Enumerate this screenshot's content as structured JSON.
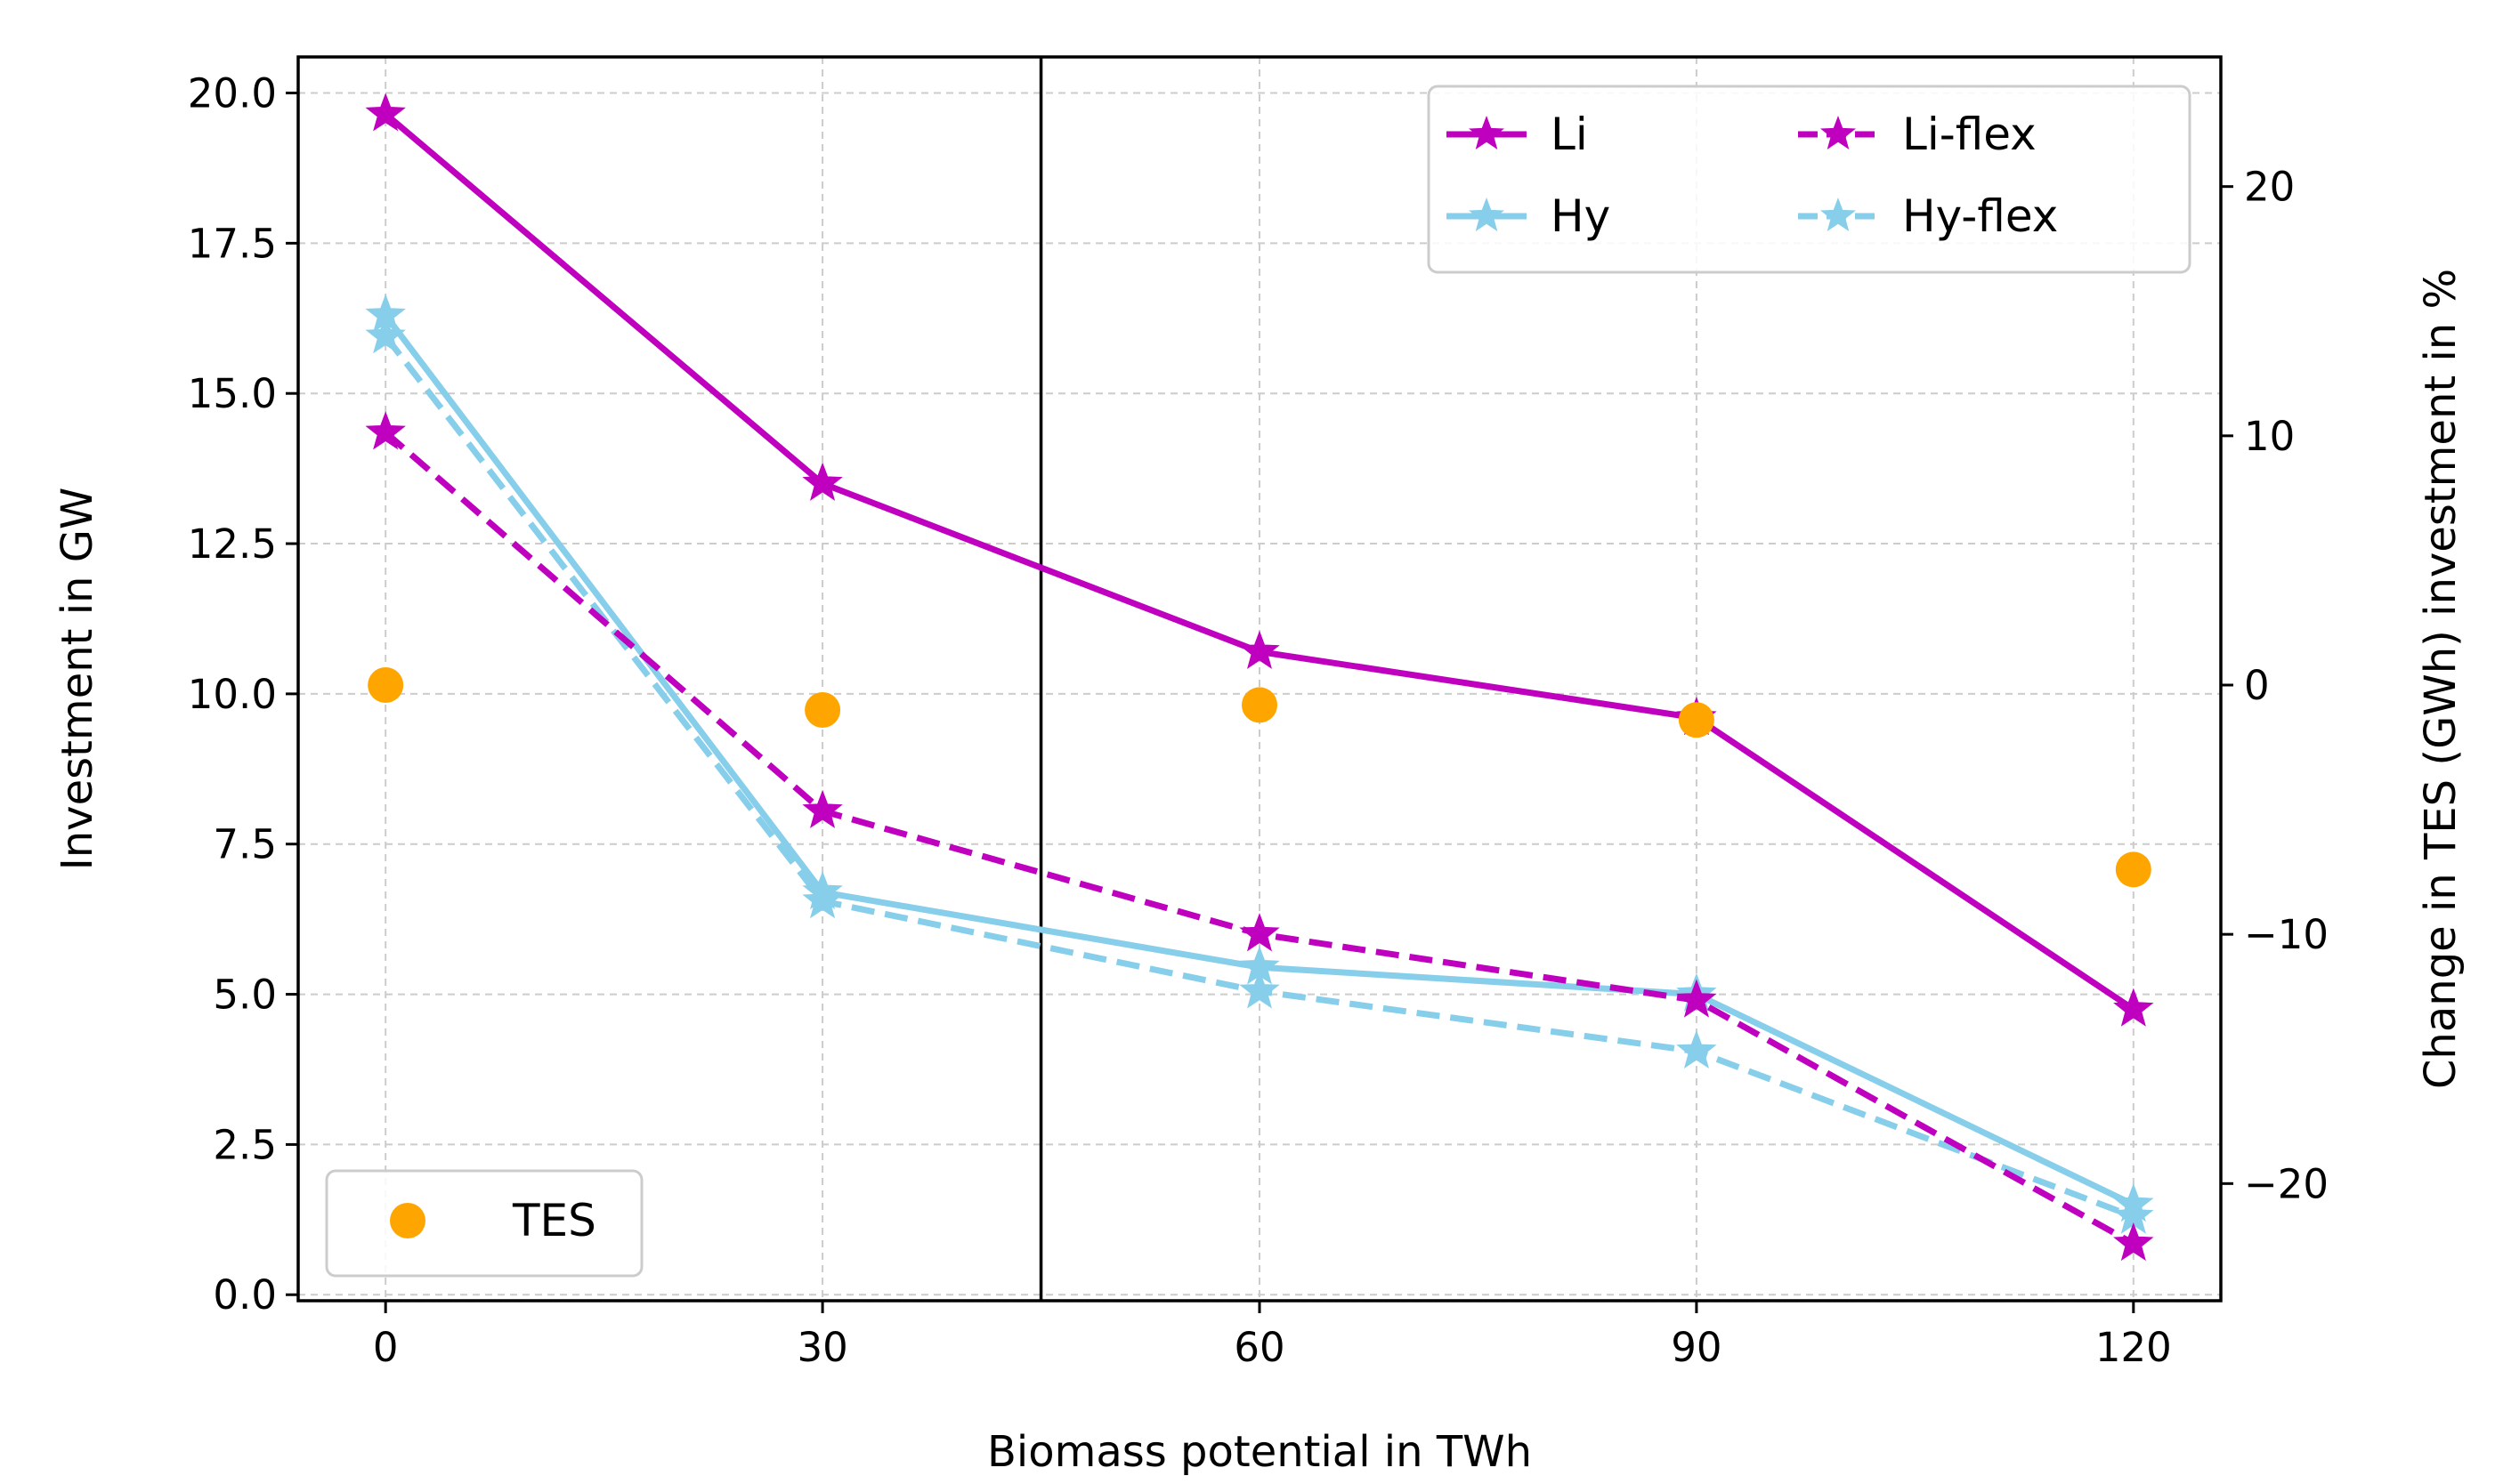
{
  "chart_data": {
    "type": "line",
    "xlabel": "Biomass potential in TWh",
    "ylabel": "Investment in GW",
    "y2label": "Change in TES (GWh) investment in %",
    "x": [
      0,
      30,
      60,
      90,
      120
    ],
    "xticks": [
      "0",
      "30",
      "60",
      "90",
      "120"
    ],
    "xlim": [
      -6,
      126
    ],
    "ylim": [
      -0.1,
      20.6
    ],
    "yticks": [
      "0.0",
      "2.5",
      "5.0",
      "7.5",
      "10.0",
      "12.5",
      "15.0",
      "17.5",
      "20.0"
    ],
    "yticks_values": [
      0,
      2.5,
      5,
      7.5,
      10,
      12.5,
      15,
      17.5,
      20
    ],
    "y2lim": [
      -24.7,
      25.2
    ],
    "y2ticks": [
      "−20",
      "−10",
      "0",
      "10",
      "20"
    ],
    "y2ticks_values": [
      -20,
      -10,
      0,
      10,
      20
    ],
    "vline_x": 45,
    "grid": true,
    "series": [
      {
        "name": "Li",
        "axis": "left",
        "style": "solid",
        "marker": "star",
        "color": "#bf00bf",
        "values": [
          19.65,
          13.5,
          10.7,
          9.6,
          4.75
        ]
      },
      {
        "name": "Hy",
        "axis": "left",
        "style": "solid",
        "marker": "star",
        "color": "#87ceeb",
        "values": [
          16.3,
          6.7,
          5.45,
          5.0,
          1.5
        ]
      },
      {
        "name": "Li-flex",
        "axis": "left",
        "style": "dashed",
        "marker": "star",
        "color": "#bf00bf",
        "values": [
          14.35,
          8.05,
          6.0,
          4.9,
          0.85
        ]
      },
      {
        "name": "Hy-flex",
        "axis": "left",
        "style": "dashed",
        "marker": "star",
        "color": "#87ceeb",
        "values": [
          15.95,
          6.55,
          5.05,
          4.05,
          1.3
        ]
      },
      {
        "name": "TES",
        "axis": "right",
        "style": "none",
        "marker": "circle",
        "color": "#ffa500",
        "values": [
          0.0,
          -1.0,
          -0.8,
          -1.4,
          -7.4
        ]
      }
    ],
    "legends": [
      {
        "placement": "upper-right",
        "columns": 2,
        "entries": [
          "Li",
          "Li-flex",
          "Hy",
          "Hy-flex"
        ]
      },
      {
        "placement": "lower-left",
        "columns": 1,
        "entries": [
          "TES"
        ]
      }
    ]
  }
}
